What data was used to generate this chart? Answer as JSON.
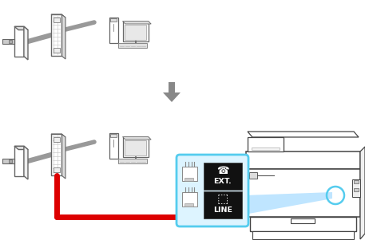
{
  "bg_color": "#ffffff",
  "arrow_color": "#888888",
  "red_cable_color": "#dd0000",
  "gray_cable_color": "#999999",
  "wall_color": "#cccccc",
  "box_border_color": "#55ccee",
  "box_fill_color": "#ddf4ff",
  "blue_beam_color": "#aaddff",
  "printer_outline": "#444444",
  "circle_color": "#55ccee",
  "modem_hatch": "#bbbbbb",
  "dark_gray": "#666666",
  "light_gray": "#dddddd",
  "ext_text": "EXT.",
  "line_text": "LINE"
}
